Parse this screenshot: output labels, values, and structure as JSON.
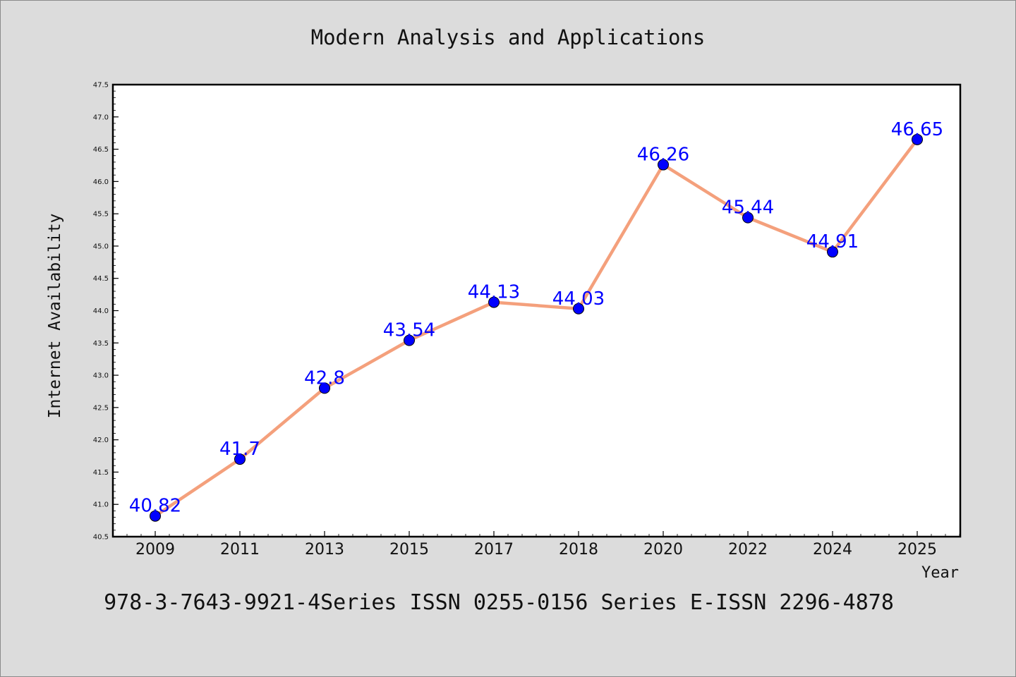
{
  "chart_data": {
    "type": "line",
    "title": "Modern Analysis and Applications",
    "xlabel": "Year",
    "ylabel": "Internet Availability",
    "categories": [
      "2009",
      "2011",
      "2013",
      "2015",
      "2017",
      "2018",
      "2020",
      "2022",
      "2024",
      "2025"
    ],
    "series": [
      {
        "values": [
          40.82,
          41.7,
          42.8,
          43.54,
          44.13,
          44.03,
          46.26,
          45.44,
          44.91,
          46.65
        ],
        "labels": [
          "40.82",
          "41.7",
          "42.8",
          "43.54",
          "44.13",
          "44.03",
          "46.26",
          "45.44",
          "44.91",
          "46.65"
        ],
        "line_color": "#f4a07c",
        "marker_color": "#0000ff"
      }
    ],
    "ylim": [
      40.5,
      47.5
    ],
    "yticks": [
      "40.5",
      "41.0",
      "41.5",
      "42.0",
      "42.5",
      "43.0",
      "43.5",
      "44.0",
      "44.5",
      "45.0",
      "45.5",
      "46.0",
      "46.5",
      "47.0",
      "47.5"
    ],
    "grid": false,
    "legend": "none"
  },
  "footer": "978-3-7643-9921-4Series ISSN 0255-0156 Series E-ISSN 2296-4878"
}
